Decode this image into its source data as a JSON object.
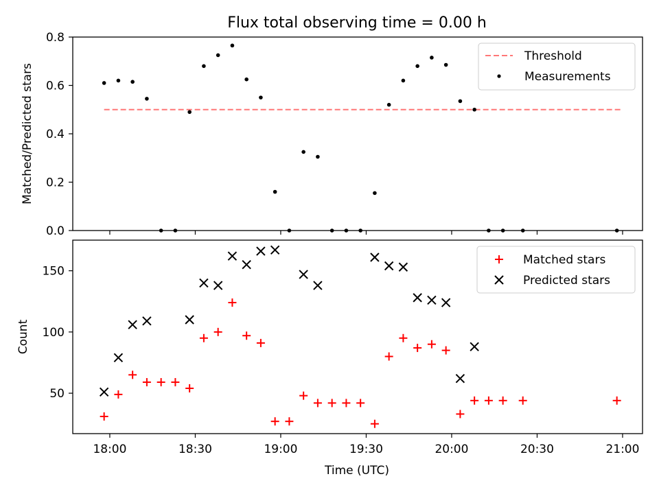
{
  "figure_title": "Flux total observing time = 0.00 h",
  "xlabel": "Time (UTC)",
  "x_ticks": [
    "18:00",
    "18:30",
    "19:00",
    "19:30",
    "20:00",
    "20:30",
    "21:00"
  ],
  "colors": {
    "threshold": "#ff7777",
    "matched": "#ff0000",
    "predicted": "#000000",
    "measurement": "#000000"
  },
  "chart_data": [
    {
      "type": "scatter",
      "ylabel": "Matched/Predicted stars",
      "xlim": [
        "17:47",
        "21:07"
      ],
      "ylim": [
        0,
        0.8
      ],
      "y_ticks": [
        "0.0",
        "0.2",
        "0.4",
        "0.6",
        "0.8"
      ],
      "legend_position": "top-right",
      "series": [
        {
          "name": "Threshold",
          "kind": "line",
          "style": "dashed",
          "x": [
            "17:58",
            "21:00"
          ],
          "values": [
            0.5,
            0.5
          ]
        },
        {
          "name": "Measurements",
          "kind": "scatter",
          "marker": "dot",
          "x": [
            "17:58",
            "18:03",
            "18:08",
            "18:13",
            "18:18",
            "18:23",
            "18:28",
            "18:33",
            "18:38",
            "18:43",
            "18:48",
            "18:53",
            "18:58",
            "19:03",
            "19:08",
            "19:13",
            "19:18",
            "19:23",
            "19:28",
            "19:33",
            "19:38",
            "19:43",
            "19:48",
            "19:53",
            "19:58",
            "20:03",
            "20:08",
            "20:13",
            "20:18",
            "20:25",
            "20:58"
          ],
          "values": [
            0.61,
            0.62,
            0.615,
            0.545,
            0,
            0,
            0.49,
            0.68,
            0.725,
            0.765,
            0.625,
            0.55,
            0.16,
            0,
            0.325,
            0.305,
            0,
            0,
            0,
            0.155,
            0.52,
            0.62,
            0.68,
            0.715,
            0.685,
            0.535,
            0.5,
            0,
            0,
            0,
            0
          ]
        }
      ]
    },
    {
      "type": "scatter",
      "ylabel": "Count",
      "xlim": [
        "17:47",
        "21:07"
      ],
      "ylim": [
        17,
        175
      ],
      "y_ticks": [
        "50",
        "100",
        "150"
      ],
      "legend_position": "top-right",
      "series": [
        {
          "name": "Matched stars",
          "kind": "scatter",
          "marker": "plus",
          "x": [
            "17:58",
            "18:03",
            "18:08",
            "18:13",
            "18:18",
            "18:23",
            "18:28",
            "18:33",
            "18:38",
            "18:43",
            "18:48",
            "18:53",
            "18:58",
            "19:03",
            "19:08",
            "19:13",
            "19:18",
            "19:23",
            "19:28",
            "19:33",
            "19:38",
            "19:43",
            "19:48",
            "19:53",
            "19:58",
            "20:03",
            "20:08",
            "20:13",
            "20:18",
            "20:25",
            "20:58"
          ],
          "values": [
            31,
            49,
            65,
            59,
            59,
            59,
            54,
            95,
            100,
            124,
            97,
            91,
            27,
            27,
            48,
            42,
            42,
            42,
            42,
            25,
            80,
            95,
            87,
            90,
            85,
            33,
            44,
            44,
            44,
            44,
            44
          ]
        },
        {
          "name": "Predicted stars",
          "kind": "scatter",
          "marker": "x",
          "x": [
            "17:58",
            "18:03",
            "18:08",
            "18:13",
            "18:28",
            "18:33",
            "18:38",
            "18:43",
            "18:48",
            "18:53",
            "18:58",
            "19:08",
            "19:13",
            "19:33",
            "19:38",
            "19:43",
            "19:48",
            "19:53",
            "19:58",
            "20:03",
            "20:08"
          ],
          "values": [
            51,
            79,
            106,
            109,
            110,
            140,
            138,
            162,
            155,
            166,
            167,
            147,
            138,
            161,
            154,
            153,
            128,
            126,
            124,
            62,
            88
          ]
        }
      ]
    }
  ]
}
